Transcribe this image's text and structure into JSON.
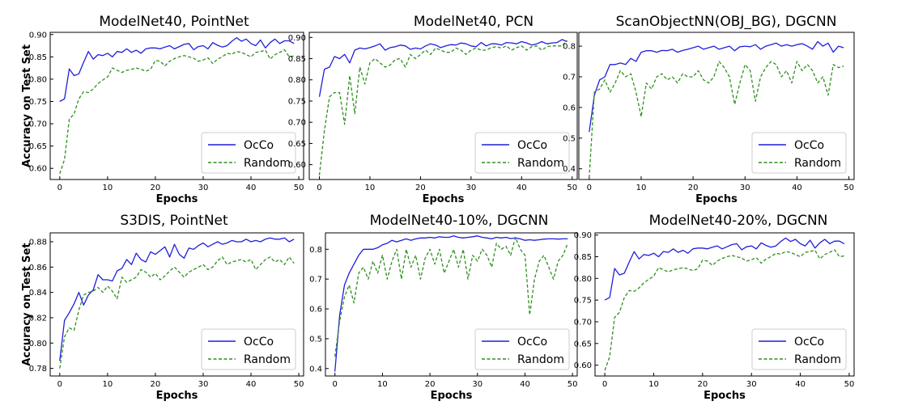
{
  "colors": {
    "occo": "#1f1fdc",
    "random": "#2f8f1f"
  },
  "chart_data": [
    {
      "type": "line",
      "title": "ModelNet40, PointNet",
      "xlabel": "Epochs",
      "ylabel": "Accuracy on Test Set",
      "xlim": [
        -2,
        51
      ],
      "ylim": [
        0.575,
        0.905
      ],
      "xticks": [
        0,
        10,
        20,
        30,
        40,
        50
      ],
      "yticks": [
        0.6,
        0.65,
        0.7,
        0.75,
        0.8,
        0.85,
        0.9
      ],
      "ytick_labels": [
        "0.60",
        "0.65",
        "0.70",
        "0.75",
        "0.80",
        "0.85",
        "0.90"
      ],
      "legend_position": "lower-right",
      "x": [
        0,
        1,
        2,
        3,
        4,
        5,
        6,
        7,
        8,
        9,
        10,
        11,
        12,
        13,
        14,
        15,
        16,
        17,
        18,
        19,
        20,
        21,
        22,
        23,
        24,
        25,
        26,
        27,
        28,
        29,
        30,
        31,
        32,
        33,
        34,
        35,
        36,
        37,
        38,
        39,
        40,
        41,
        42,
        43,
        44,
        45,
        46,
        47,
        48,
        49
      ],
      "series": [
        {
          "name": "OcCo",
          "style": "solid",
          "values": [
            0.75,
            0.756,
            0.823,
            0.808,
            0.812,
            0.838,
            0.862,
            0.845,
            0.855,
            0.853,
            0.858,
            0.85,
            0.862,
            0.86,
            0.868,
            0.86,
            0.865,
            0.858,
            0.868,
            0.87,
            0.87,
            0.868,
            0.872,
            0.875,
            0.868,
            0.873,
            0.878,
            0.88,
            0.866,
            0.873,
            0.875,
            0.868,
            0.882,
            0.876,
            0.872,
            0.875,
            0.885,
            0.893,
            0.885,
            0.89,
            0.88,
            0.875,
            0.888,
            0.87,
            0.882,
            0.89,
            0.88,
            0.886,
            0.886,
            0.88
          ]
        },
        {
          "name": "Random",
          "style": "dashed",
          "values": [
            0.588,
            0.62,
            0.71,
            0.722,
            0.756,
            0.772,
            0.77,
            0.778,
            0.79,
            0.798,
            0.805,
            0.825,
            0.82,
            0.815,
            0.82,
            0.822,
            0.825,
            0.822,
            0.818,
            0.822,
            0.842,
            0.84,
            0.83,
            0.84,
            0.846,
            0.85,
            0.853,
            0.85,
            0.847,
            0.84,
            0.843,
            0.848,
            0.835,
            0.845,
            0.85,
            0.858,
            0.856,
            0.862,
            0.86,
            0.855,
            0.85,
            0.86,
            0.862,
            0.865,
            0.845,
            0.855,
            0.86,
            0.866,
            0.85,
            0.852
          ]
        }
      ]
    },
    {
      "type": "line",
      "title": "ModelNet40, PCN",
      "xlabel": "Epochs",
      "ylabel": "",
      "xlim": [
        -2,
        51
      ],
      "ylim": [
        0.565,
        0.912
      ],
      "xticks": [
        0,
        10,
        20,
        30,
        40,
        50
      ],
      "yticks": [
        0.6,
        0.65,
        0.7,
        0.75,
        0.8,
        0.85,
        0.9
      ],
      "ytick_labels": [
        "0.60",
        "0.65",
        "0.70",
        "0.75",
        "0.80",
        "0.85",
        "0.90"
      ],
      "legend_position": "lower-right",
      "x": [
        0,
        1,
        2,
        3,
        4,
        5,
        6,
        7,
        8,
        9,
        10,
        11,
        12,
        13,
        14,
        15,
        16,
        17,
        18,
        19,
        20,
        21,
        22,
        23,
        24,
        25,
        26,
        27,
        28,
        29,
        30,
        31,
        32,
        33,
        34,
        35,
        36,
        37,
        38,
        39,
        40,
        41,
        42,
        43,
        44,
        45,
        46,
        47,
        48,
        49
      ],
      "series": [
        {
          "name": "OcCo",
          "style": "solid",
          "values": [
            0.76,
            0.825,
            0.83,
            0.855,
            0.85,
            0.86,
            0.84,
            0.87,
            0.875,
            0.873,
            0.876,
            0.88,
            0.885,
            0.87,
            0.876,
            0.878,
            0.882,
            0.88,
            0.872,
            0.875,
            0.873,
            0.88,
            0.885,
            0.882,
            0.876,
            0.88,
            0.883,
            0.882,
            0.887,
            0.885,
            0.88,
            0.878,
            0.888,
            0.88,
            0.885,
            0.885,
            0.882,
            0.888,
            0.887,
            0.885,
            0.89,
            0.887,
            0.882,
            0.885,
            0.89,
            0.885,
            0.887,
            0.888,
            0.895,
            0.89
          ]
        },
        {
          "name": "Random",
          "style": "dashed",
          "values": [
            0.575,
            0.68,
            0.76,
            0.77,
            0.77,
            0.695,
            0.81,
            0.72,
            0.83,
            0.79,
            0.84,
            0.85,
            0.84,
            0.83,
            0.835,
            0.848,
            0.85,
            0.83,
            0.86,
            0.85,
            0.86,
            0.87,
            0.86,
            0.875,
            0.87,
            0.865,
            0.865,
            0.875,
            0.87,
            0.86,
            0.87,
            0.875,
            0.87,
            0.87,
            0.876,
            0.878,
            0.875,
            0.88,
            0.87,
            0.876,
            0.88,
            0.87,
            0.878,
            0.88,
            0.87,
            0.878,
            0.88,
            0.88,
            0.88,
            0.893
          ]
        }
      ]
    },
    {
      "type": "line",
      "title": "ScanObjectNN(OBJ_BG), DGCNN",
      "xlabel": "Epochs",
      "ylabel": "",
      "xlim": [
        -2,
        51
      ],
      "ylim": [
        0.365,
        0.845
      ],
      "xticks": [
        0,
        10,
        20,
        30,
        40,
        50
      ],
      "yticks": [
        0.4,
        0.5,
        0.6,
        0.7,
        0.8
      ],
      "ytick_labels": [
        "0.4",
        "0.5",
        "0.6",
        "0.7",
        "0.8"
      ],
      "legend_position": "lower-right",
      "x": [
        0,
        1,
        2,
        3,
        4,
        5,
        6,
        7,
        8,
        9,
        10,
        11,
        12,
        13,
        14,
        15,
        16,
        17,
        18,
        19,
        20,
        21,
        22,
        23,
        24,
        25,
        26,
        27,
        28,
        29,
        30,
        31,
        32,
        33,
        34,
        35,
        36,
        37,
        38,
        39,
        40,
        41,
        42,
        43,
        44,
        45,
        46,
        47,
        48,
        49
      ],
      "series": [
        {
          "name": "OcCo",
          "style": "solid",
          "values": [
            0.52,
            0.64,
            0.69,
            0.7,
            0.74,
            0.74,
            0.745,
            0.74,
            0.76,
            0.75,
            0.78,
            0.785,
            0.785,
            0.78,
            0.786,
            0.785,
            0.79,
            0.78,
            0.786,
            0.79,
            0.795,
            0.8,
            0.79,
            0.795,
            0.8,
            0.79,
            0.795,
            0.8,
            0.785,
            0.798,
            0.8,
            0.798,
            0.805,
            0.79,
            0.8,
            0.805,
            0.81,
            0.8,
            0.805,
            0.8,
            0.805,
            0.808,
            0.8,
            0.79,
            0.815,
            0.8,
            0.81,
            0.78,
            0.8,
            0.795
          ]
        },
        {
          "name": "Random",
          "style": "dashed",
          "values": [
            0.37,
            0.65,
            0.66,
            0.69,
            0.65,
            0.68,
            0.72,
            0.7,
            0.71,
            0.65,
            0.57,
            0.68,
            0.66,
            0.7,
            0.71,
            0.69,
            0.7,
            0.68,
            0.71,
            0.7,
            0.7,
            0.72,
            0.69,
            0.68,
            0.7,
            0.75,
            0.73,
            0.7,
            0.61,
            0.68,
            0.74,
            0.72,
            0.62,
            0.7,
            0.73,
            0.75,
            0.74,
            0.7,
            0.72,
            0.68,
            0.75,
            0.72,
            0.74,
            0.72,
            0.68,
            0.7,
            0.64,
            0.74,
            0.73,
            0.735
          ]
        }
      ]
    },
    {
      "type": "line",
      "title": "S3DIS, PointNet",
      "xlabel": "Epochs",
      "ylabel": "Accuracy on Test Set",
      "xlim": [
        -2,
        51
      ],
      "ylim": [
        0.774,
        0.887
      ],
      "xticks": [
        0,
        10,
        20,
        30,
        40,
        50
      ],
      "yticks": [
        0.78,
        0.8,
        0.82,
        0.84,
        0.86,
        0.88
      ],
      "ytick_labels": [
        "0.78",
        "0.80",
        "0.82",
        "0.84",
        "0.86",
        "0.88"
      ],
      "legend_position": "lower-right",
      "x": [
        0,
        1,
        2,
        3,
        4,
        5,
        6,
        7,
        8,
        9,
        10,
        11,
        12,
        13,
        14,
        15,
        16,
        17,
        18,
        19,
        20,
        21,
        22,
        23,
        24,
        25,
        26,
        27,
        28,
        29,
        30,
        31,
        32,
        33,
        34,
        35,
        36,
        37,
        38,
        39,
        40,
        41,
        42,
        43,
        44,
        45,
        46,
        47,
        48,
        49
      ],
      "series": [
        {
          "name": "OcCo",
          "style": "solid",
          "values": [
            0.786,
            0.818,
            0.824,
            0.831,
            0.84,
            0.83,
            0.838,
            0.842,
            0.854,
            0.85,
            0.85,
            0.849,
            0.857,
            0.859,
            0.866,
            0.862,
            0.871,
            0.866,
            0.864,
            0.872,
            0.87,
            0.873,
            0.876,
            0.868,
            0.878,
            0.87,
            0.867,
            0.875,
            0.874,
            0.877,
            0.879,
            0.876,
            0.878,
            0.88,
            0.878,
            0.879,
            0.881,
            0.88,
            0.88,
            0.882,
            0.88,
            0.881,
            0.88,
            0.882,
            0.883,
            0.882,
            0.882,
            0.883,
            0.88,
            0.882
          ]
        },
        {
          "name": "Random",
          "style": "dashed",
          "values": [
            0.78,
            0.805,
            0.812,
            0.81,
            0.826,
            0.838,
            0.84,
            0.841,
            0.844,
            0.84,
            0.845,
            0.841,
            0.835,
            0.852,
            0.848,
            0.85,
            0.852,
            0.858,
            0.856,
            0.852,
            0.855,
            0.85,
            0.853,
            0.857,
            0.86,
            0.856,
            0.852,
            0.856,
            0.858,
            0.86,
            0.862,
            0.858,
            0.86,
            0.865,
            0.868,
            0.862,
            0.864,
            0.865,
            0.866,
            0.864,
            0.866,
            0.858,
            0.862,
            0.866,
            0.868,
            0.864,
            0.866,
            0.862,
            0.868,
            0.863
          ]
        }
      ]
    },
    {
      "type": "line",
      "title": "ModelNet40-10%, DGCNN",
      "xlabel": "Epochs",
      "ylabel": "",
      "xlim": [
        -2,
        51
      ],
      "ylim": [
        0.375,
        0.855
      ],
      "xticks": [
        0,
        10,
        20,
        30,
        40,
        50
      ],
      "yticks": [
        0.4,
        0.5,
        0.6,
        0.7,
        0.8
      ],
      "ytick_labels": [
        "0.4",
        "0.5",
        "0.6",
        "0.7",
        "0.8"
      ],
      "legend_position": "lower-right",
      "x": [
        0,
        1,
        2,
        3,
        4,
        5,
        6,
        7,
        8,
        9,
        10,
        11,
        12,
        13,
        14,
        15,
        16,
        17,
        18,
        19,
        20,
        21,
        22,
        23,
        24,
        25,
        26,
        27,
        28,
        29,
        30,
        31,
        32,
        33,
        34,
        35,
        36,
        37,
        38,
        39,
        40,
        41,
        42,
        43,
        44,
        45,
        46,
        47,
        48,
        49
      ],
      "series": [
        {
          "name": "OcCo",
          "style": "solid",
          "values": [
            0.39,
            0.58,
            0.68,
            0.72,
            0.75,
            0.78,
            0.8,
            0.8,
            0.8,
            0.805,
            0.815,
            0.82,
            0.83,
            0.825,
            0.83,
            0.835,
            0.83,
            0.835,
            0.838,
            0.838,
            0.84,
            0.838,
            0.842,
            0.84,
            0.84,
            0.845,
            0.84,
            0.838,
            0.84,
            0.842,
            0.845,
            0.84,
            0.838,
            0.835,
            0.84,
            0.838,
            0.84,
            0.836,
            0.838,
            0.835,
            0.83,
            0.832,
            0.83,
            0.832,
            0.834,
            0.835,
            0.835,
            0.834,
            0.835,
            0.835
          ]
        },
        {
          "name": "Random",
          "style": "dashed",
          "values": [
            0.44,
            0.56,
            0.64,
            0.68,
            0.62,
            0.72,
            0.74,
            0.7,
            0.76,
            0.72,
            0.78,
            0.7,
            0.76,
            0.8,
            0.7,
            0.8,
            0.74,
            0.78,
            0.7,
            0.77,
            0.8,
            0.75,
            0.8,
            0.72,
            0.76,
            0.8,
            0.74,
            0.8,
            0.7,
            0.78,
            0.76,
            0.8,
            0.78,
            0.74,
            0.82,
            0.8,
            0.81,
            0.78,
            0.84,
            0.8,
            0.78,
            0.58,
            0.7,
            0.76,
            0.78,
            0.74,
            0.7,
            0.76,
            0.78,
            0.82
          ]
        }
      ]
    },
    {
      "type": "line",
      "title": "ModelNet40-20%, DGCNN",
      "xlabel": "Epochs",
      "ylabel": "",
      "xlim": [
        -2,
        51
      ],
      "ylim": [
        0.575,
        0.905
      ],
      "xticks": [
        0,
        10,
        20,
        30,
        40,
        50
      ],
      "yticks": [
        0.6,
        0.65,
        0.7,
        0.75,
        0.8,
        0.85,
        0.9
      ],
      "ytick_labels": [
        "0.60",
        "0.65",
        "0.70",
        "0.75",
        "0.80",
        "0.85",
        "0.90"
      ],
      "legend_position": "lower-right",
      "x": [
        0,
        1,
        2,
        3,
        4,
        5,
        6,
        7,
        8,
        9,
        10,
        11,
        12,
        13,
        14,
        15,
        16,
        17,
        18,
        19,
        20,
        21,
        22,
        23,
        24,
        25,
        26,
        27,
        28,
        29,
        30,
        31,
        32,
        33,
        34,
        35,
        36,
        37,
        38,
        39,
        40,
        41,
        42,
        43,
        44,
        45,
        46,
        47,
        48,
        49
      ],
      "series": [
        {
          "name": "OcCo",
          "style": "solid",
          "values": [
            0.75,
            0.756,
            0.823,
            0.808,
            0.812,
            0.838,
            0.862,
            0.845,
            0.855,
            0.853,
            0.858,
            0.85,
            0.862,
            0.86,
            0.868,
            0.86,
            0.865,
            0.858,
            0.868,
            0.87,
            0.87,
            0.868,
            0.872,
            0.875,
            0.868,
            0.873,
            0.878,
            0.88,
            0.866,
            0.873,
            0.875,
            0.868,
            0.882,
            0.876,
            0.872,
            0.875,
            0.885,
            0.893,
            0.885,
            0.89,
            0.88,
            0.875,
            0.888,
            0.87,
            0.882,
            0.89,
            0.88,
            0.886,
            0.886,
            0.88
          ]
        },
        {
          "name": "Random",
          "style": "dashed",
          "values": [
            0.588,
            0.62,
            0.71,
            0.722,
            0.756,
            0.772,
            0.77,
            0.778,
            0.79,
            0.798,
            0.805,
            0.825,
            0.82,
            0.815,
            0.82,
            0.822,
            0.825,
            0.822,
            0.818,
            0.822,
            0.842,
            0.84,
            0.83,
            0.84,
            0.846,
            0.85,
            0.853,
            0.85,
            0.847,
            0.84,
            0.843,
            0.848,
            0.835,
            0.845,
            0.85,
            0.858,
            0.856,
            0.862,
            0.86,
            0.855,
            0.85,
            0.86,
            0.862,
            0.865,
            0.845,
            0.855,
            0.86,
            0.866,
            0.85,
            0.852
          ]
        }
      ]
    }
  ]
}
